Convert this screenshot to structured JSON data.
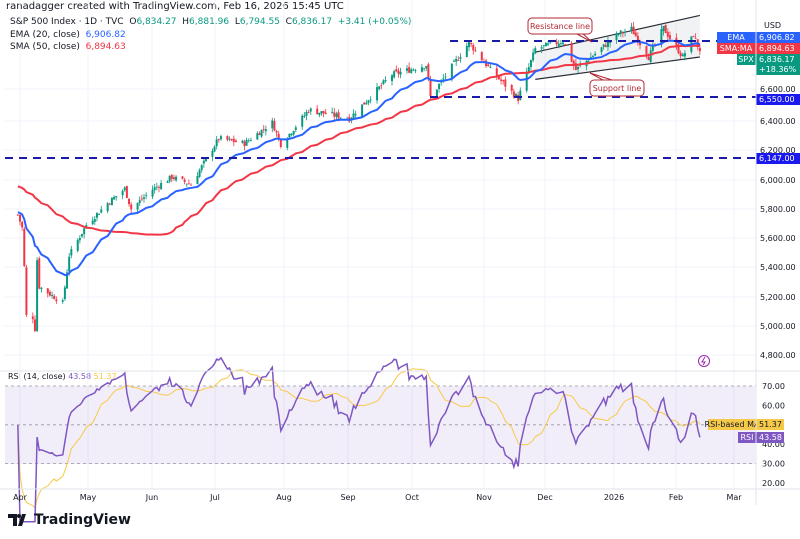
{
  "credit": "ranadagger created with TradingView.com, Feb 16, 2026 15:45 UTC",
  "legend": {
    "symbol": "S&P 500 Index · 1D · TVC",
    "open_label": "O",
    "open": "6,834.27",
    "high_label": "H",
    "high": "6,881.96",
    "low_label": "L",
    "low": "6,794.55",
    "close_label": "C",
    "close": "6,836.17",
    "change": "+3.41 (+0.05%)",
    "ema_label": "EMA (20, close)",
    "ema_value": "6,906.82",
    "sma_label": "SMA (50, close)",
    "sma_value": "6,894.63"
  },
  "price_axis": {
    "currency": "USD",
    "ticks": [
      "6,600.00",
      "6,400.00",
      "6,200.00",
      "6,000.00",
      "5,800.00",
      "5,600.00",
      "5,400.00",
      "5,200.00",
      "5,000.00",
      "4,800.00"
    ],
    "tags": {
      "ema_name": "EMA",
      "ema_value": "6,906.82",
      "sma_name": "SMA:MA",
      "sma_value": "6,894.63",
      "spx_name": "SPX",
      "spx_value": "6,836.17",
      "spx_change": "+18.36%",
      "level1": "6,550.00",
      "level2": "6,147.00"
    }
  },
  "annotations": {
    "resistance": "Resistance line",
    "support": "Support line"
  },
  "rsi": {
    "label": "RSI (14, close)",
    "value": "43.58",
    "ma_value": "51.37",
    "ticks": [
      "70.00",
      "60.00",
      "40.00",
      "30.00",
      "20.00"
    ],
    "ma_tag_name": "RSI-based MA",
    "ma_tag_value": "51.37",
    "rsi_tag_name": "RSI",
    "rsi_tag_value": "43.58"
  },
  "time_axis": [
    "Apr",
    "May",
    "Jun",
    "Jul",
    "Aug",
    "Sep",
    "Oct",
    "Nov",
    "Dec",
    "2026",
    "Feb",
    "Mar"
  ],
  "brand": "TradingView",
  "colors": {
    "up": "#089981",
    "down": "#f23645",
    "ema": "#2962ff",
    "sma": "#f23645",
    "rsi": "#7e57c2",
    "rsi_ma": "#f7c948",
    "levels": "#1a1aa6"
  },
  "chart_data": {
    "type": "candlestick",
    "timeframe": "1D",
    "ylim": [
      4750,
      7100
    ],
    "horizontal_levels": [
      6900,
      6550,
      6147
    ],
    "channel": {
      "resistance": [
        [
          "2025-11-28",
          6830
        ],
        [
          "2026-02-13",
          7060
        ]
      ],
      "support": [
        [
          "2025-11-28",
          6660
        ],
        [
          "2026-02-13",
          6800
        ]
      ]
    },
    "approx_close_path": [
      [
        "2025-03-31",
        5760
      ],
      [
        "2025-04-02",
        5670
      ],
      [
        "2025-04-03",
        5400
      ],
      [
        "2025-04-04",
        5070
      ],
      [
        "2025-04-07",
        5060
      ],
      [
        "2025-04-08",
        4980
      ],
      [
        "2025-04-09",
        5450
      ],
      [
        "2025-04-10",
        5270
      ],
      [
        "2025-04-21",
        5160
      ],
      [
        "2025-04-24",
        5480
      ],
      [
        "2025-05-02",
        5690
      ],
      [
        "2025-05-12",
        5840
      ],
      [
        "2025-05-20",
        5940
      ],
      [
        "2025-05-23",
        5800
      ],
      [
        "2025-06-02",
        5935
      ],
      [
        "2025-06-11",
        6020
      ],
      [
        "2025-06-20",
        5970
      ],
      [
        "2025-07-03",
        6280
      ],
      [
        "2025-07-15",
        6245
      ],
      [
        "2025-07-28",
        6390
      ],
      [
        "2025-08-01",
        6240
      ],
      [
        "2025-08-14",
        6470
      ],
      [
        "2025-09-02",
        6415
      ],
      [
        "2025-09-22",
        6690
      ],
      [
        "2025-10-08",
        6750
      ],
      [
        "2025-10-10",
        6550
      ],
      [
        "2025-10-28",
        6890
      ],
      [
        "2025-11-07",
        6720
      ],
      [
        "2025-11-20",
        6540
      ],
      [
        "2025-11-28",
        6850
      ],
      [
        "2025-12-11",
        6900
      ],
      [
        "2025-12-17",
        6720
      ],
      [
        "2026-01-06",
        6945
      ],
      [
        "2026-01-12",
        6975
      ],
      [
        "2026-01-20",
        6800
      ],
      [
        "2026-01-27",
        6980
      ],
      [
        "2026-02-05",
        6800
      ],
      [
        "2026-02-10",
        6940
      ],
      [
        "2026-02-13",
        6836.17
      ]
    ],
    "ema_last": 6906.82,
    "sma_last": 6894.63,
    "rsi_last": 43.58,
    "rsi_ma_last": 51.37,
    "rsi_ylim": [
      15,
      78
    ],
    "rsi_band": [
      30,
      70
    ]
  }
}
